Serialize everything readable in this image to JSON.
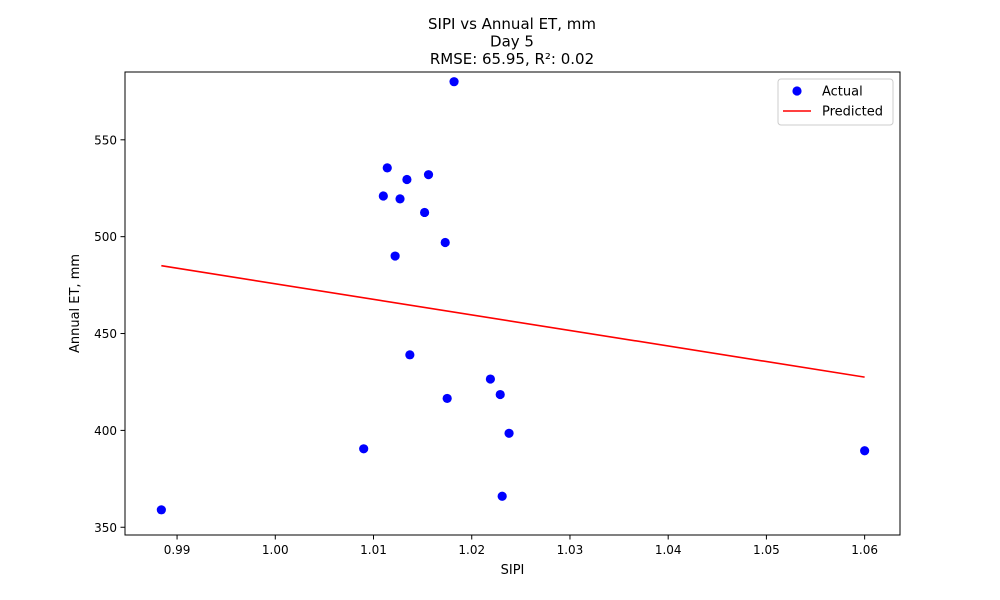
{
  "chart_data": {
    "type": "scatter",
    "title_lines": [
      "SIPI vs Annual ET, mm",
      "Day 5",
      "RMSE: 65.95, R²: 0.02"
    ],
    "xlabel": "SIPI",
    "ylabel": "Annual ET, mm",
    "xlim": [
      0.9847,
      1.0636
    ],
    "ylim": [
      346,
      585
    ],
    "x_ticks": [
      0.99,
      1.0,
      1.01,
      1.02,
      1.03,
      1.04,
      1.05,
      1.06
    ],
    "x_tick_labels": [
      "0.99",
      "1.00",
      "1.01",
      "1.02",
      "1.03",
      "1.04",
      "1.05",
      "1.06"
    ],
    "y_ticks": [
      350,
      400,
      450,
      500,
      550
    ],
    "y_tick_labels": [
      "350",
      "400",
      "450",
      "500",
      "550"
    ],
    "grid": false,
    "legend": {
      "position": "top-right",
      "entries": [
        "Actual",
        "Predicted"
      ]
    },
    "series": [
      {
        "name": "Actual",
        "kind": "scatter",
        "color": "#0000ff",
        "points": [
          [
            0.9884,
            359
          ],
          [
            1.009,
            390.5
          ],
          [
            1.011,
            521
          ],
          [
            1.0114,
            535.5
          ],
          [
            1.0122,
            490
          ],
          [
            1.0127,
            519.5
          ],
          [
            1.0134,
            529.5
          ],
          [
            1.0137,
            439
          ],
          [
            1.0152,
            512.5
          ],
          [
            1.0156,
            532
          ],
          [
            1.0173,
            497
          ],
          [
            1.0175,
            416.5
          ],
          [
            1.0182,
            580
          ],
          [
            1.0219,
            426.5
          ],
          [
            1.0229,
            418.5
          ],
          [
            1.0231,
            366
          ],
          [
            1.0238,
            398.5
          ],
          [
            1.06,
            389.5
          ]
        ]
      },
      {
        "name": "Predicted",
        "kind": "line",
        "color": "#ff0000",
        "points": [
          [
            0.9884,
            485
          ],
          [
            1.06,
            427.5
          ]
        ]
      }
    ]
  }
}
